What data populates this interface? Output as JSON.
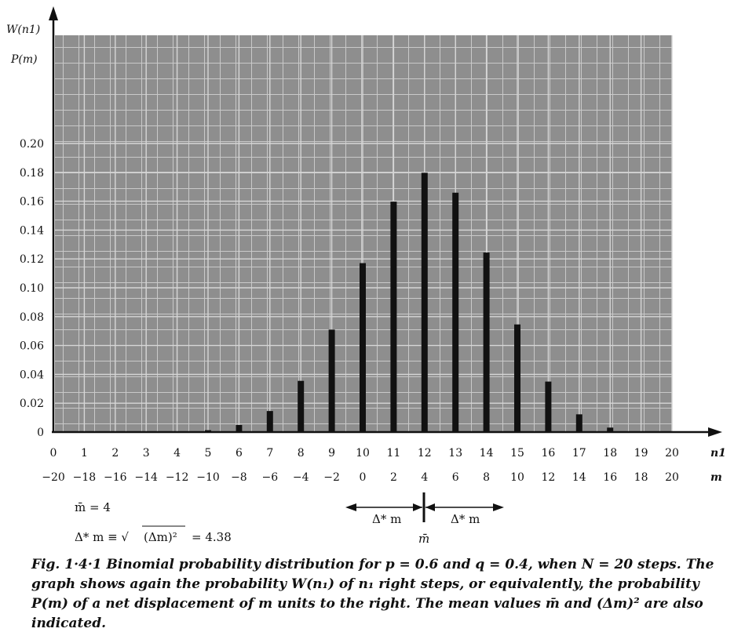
{
  "chart_data": {
    "type": "bar",
    "y_axis_labels": [
      "W(n1)",
      "P(m)"
    ],
    "x_axis_labels": [
      "n1",
      "m"
    ],
    "n1_values": [
      0,
      1,
      2,
      3,
      4,
      5,
      6,
      7,
      8,
      9,
      10,
      11,
      12,
      13,
      14,
      15,
      16,
      17,
      18,
      19,
      20
    ],
    "m_values": [
      -20,
      -18,
      -16,
      -14,
      -12,
      -10,
      -8,
      -6,
      -4,
      -2,
      0,
      2,
      4,
      6,
      8,
      10,
      12,
      14,
      16,
      18,
      20
    ],
    "x_ticks_n1": [
      "0",
      "1",
      "2",
      "3",
      "4",
      "5",
      "6",
      "7",
      "8",
      "9",
      "10",
      "11",
      "12",
      "13",
      "14",
      "15",
      "16",
      "17",
      "18",
      "19",
      "20"
    ],
    "x_ticks_m": [
      "−20",
      "−18",
      "−16",
      "−14",
      "−12",
      "−10",
      "−8",
      "−6",
      "−4",
      "−2",
      "0",
      "2",
      "4",
      "6",
      "8",
      "10",
      "12",
      "14",
      "16",
      "18",
      "20"
    ],
    "values": [
      0,
      0,
      0,
      0,
      0,
      0.0013,
      0.0049,
      0.0146,
      0.0355,
      0.071,
      0.1171,
      0.1597,
      0.1797,
      0.1659,
      0.1244,
      0.0746,
      0.035,
      0.0123,
      0.0031,
      0.0005,
      0
    ],
    "y_ticks": [
      "0",
      "0.02",
      "0.04",
      "0.06",
      "0.08",
      "0.10",
      "0.12",
      "0.14",
      "0.16",
      "0.18",
      "0.20"
    ],
    "ylim": [
      0,
      0.21
    ],
    "grid": true,
    "annotations": {
      "mean": "m̄ = 4",
      "std_lhs": "Δ* m ≡ √",
      "std_radicand": "(Δm)²",
      "std_value": "= 4.38",
      "left_arrow_label": "Δ* m",
      "right_arrow_label": "Δ* m",
      "mean_marker_label": "m̄"
    }
  },
  "caption": "Fig. 1·4·1   Binomial probability distribution for p = 0.6 and q = 0.4, when N = 20 steps.   The graph shows again the probability W(n₁) of n₁ right steps, or equivalently, the probability P(m) of a net displacement of m units to the right.   The mean values m̄ and (Δm)² are also indicated."
}
